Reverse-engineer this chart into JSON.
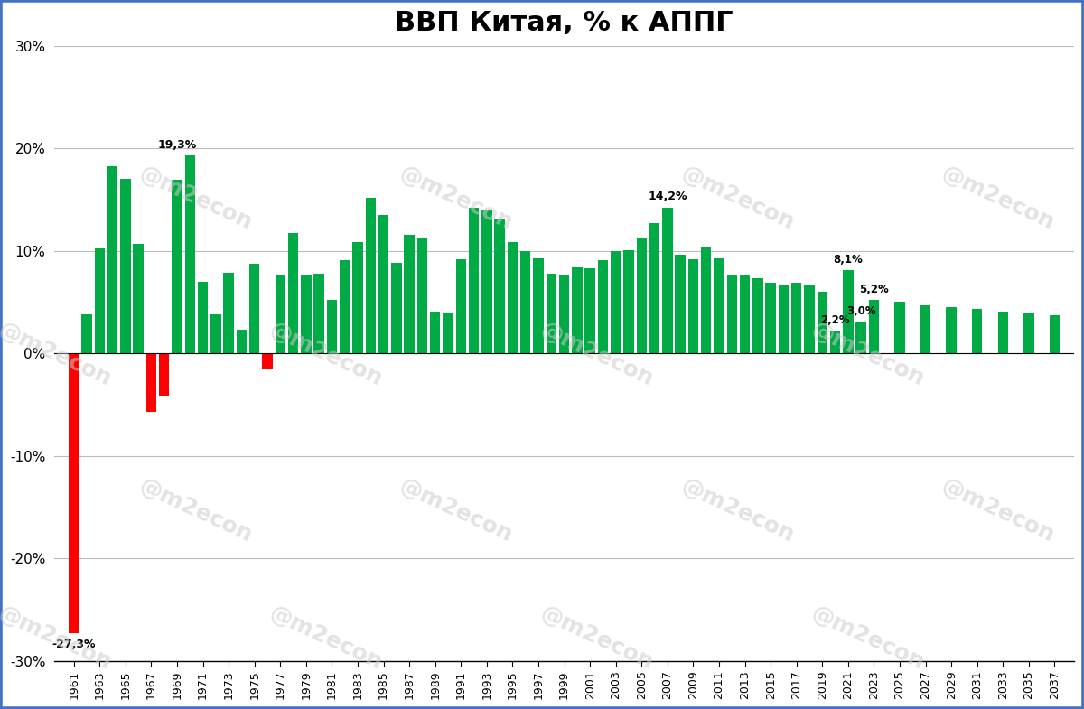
{
  "title": "ВВП Китая, % к АППГ",
  "background_color": "#ffffff",
  "title_fontsize": 22,
  "years": [
    1961,
    1962,
    1963,
    1964,
    1965,
    1966,
    1967,
    1968,
    1969,
    1970,
    1971,
    1972,
    1973,
    1974,
    1975,
    1976,
    1977,
    1978,
    1979,
    1980,
    1981,
    1982,
    1983,
    1984,
    1985,
    1986,
    1987,
    1988,
    1989,
    1990,
    1991,
    1992,
    1993,
    1994,
    1995,
    1996,
    1997,
    1998,
    1999,
    2000,
    2001,
    2002,
    2003,
    2004,
    2005,
    2006,
    2007,
    2008,
    2009,
    2010,
    2011,
    2012,
    2013,
    2014,
    2015,
    2016,
    2017,
    2018,
    2019,
    2020,
    2021,
    2022,
    2023,
    2025,
    2027,
    2029,
    2031,
    2033,
    2035,
    2037
  ],
  "values": [
    -27.3,
    3.8,
    10.2,
    18.3,
    17.0,
    10.7,
    -5.7,
    -4.1,
    16.9,
    19.3,
    7.0,
    3.8,
    7.9,
    2.3,
    8.7,
    -1.6,
    7.6,
    11.7,
    7.6,
    7.8,
    5.2,
    9.1,
    10.9,
    15.2,
    13.5,
    8.8,
    11.6,
    11.3,
    4.1,
    3.9,
    9.2,
    14.2,
    13.9,
    13.1,
    10.9,
    10.0,
    9.3,
    7.8,
    7.6,
    8.4,
    8.3,
    9.1,
    10.0,
    10.1,
    11.3,
    12.7,
    14.2,
    9.6,
    9.2,
    10.4,
    9.3,
    7.7,
    7.7,
    7.3,
    6.9,
    6.7,
    6.9,
    6.7,
    6.0,
    2.2,
    8.1,
    3.0,
    5.2,
    5.0,
    4.7,
    4.5,
    4.3,
    4.1,
    3.9,
    3.7
  ],
  "green_color": "#00aa44",
  "red_color": "#ff0000",
  "ylim": [
    -30,
    30
  ],
  "yticks": [
    -30,
    -20,
    -10,
    0,
    10,
    20,
    30
  ],
  "ytick_labels": [
    "-30%",
    "-20%",
    "-10%",
    "0%",
    "10%",
    "20%",
    "30%"
  ],
  "grid_color": "#bbbbbb",
  "watermark_text": "@m2econ",
  "watermark_color": "#cccccc",
  "border_color": "#4472c4"
}
